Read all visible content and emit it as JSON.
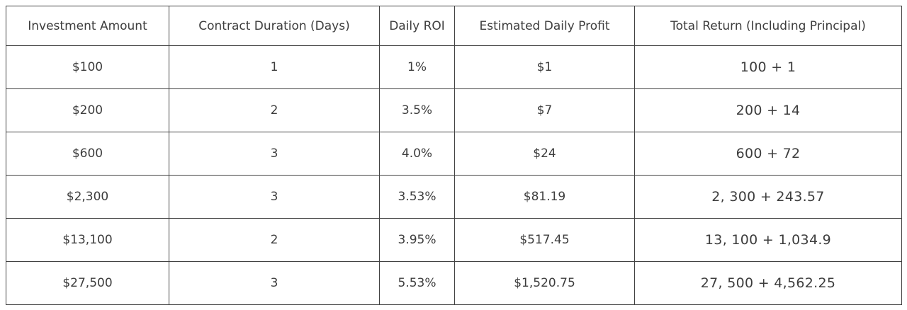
{
  "colors": {
    "border": "#424242",
    "text": "#3d3d3d",
    "background": "#ffffff"
  },
  "chart_data": {
    "type": "table",
    "columns": [
      "Investment Amount",
      "Contract Duration (Days)",
      "Daily ROI",
      "Estimated Daily Profit",
      "Total Return (Including Principal)"
    ],
    "rows": [
      [
        "$100",
        "1",
        "1%",
        "$1",
        "100 + 1"
      ],
      [
        "$200",
        "2",
        "3.5%",
        "$7",
        "200 + 14"
      ],
      [
        "$600",
        "3",
        "4.0%",
        "$24",
        "600 + 72"
      ],
      [
        "$2,300",
        "3",
        "3.53%",
        "$81.19",
        "2, 300 + 243.57"
      ],
      [
        "$13,100",
        "2",
        "3.95%",
        "$517.45",
        "13, 100 + 1,034.9"
      ],
      [
        "$27,500",
        "3",
        "5.53%",
        "$1,520.75",
        "27, 500 + 4,562.25"
      ]
    ]
  }
}
